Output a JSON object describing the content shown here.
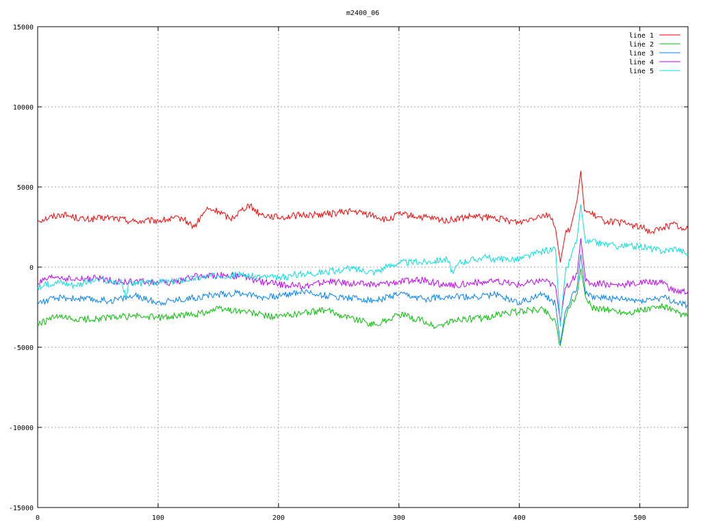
{
  "chart_data": {
    "type": "line",
    "title": "m2400_06",
    "xlabel": "",
    "ylabel": "",
    "xlim": [
      0,
      540
    ],
    "ylim": [
      -15000,
      15000
    ],
    "grid": true,
    "legend_position": "top-right",
    "x_ticks": [
      0,
      100,
      200,
      300,
      400,
      500
    ],
    "y_ticks": [
      -15000,
      -10000,
      -5000,
      0,
      5000,
      10000,
      15000
    ],
    "series": [
      {
        "name": "line 1",
        "color": "#ff0000",
        "points": [
          [
            0,
            2900
          ],
          [
            20,
            3300
          ],
          [
            40,
            2950
          ],
          [
            60,
            3100
          ],
          [
            80,
            2850
          ],
          [
            100,
            2900
          ],
          [
            120,
            3050
          ],
          [
            130,
            2500
          ],
          [
            140,
            3600
          ],
          [
            150,
            3500
          ],
          [
            160,
            3000
          ],
          [
            175,
            3900
          ],
          [
            185,
            3300
          ],
          [
            200,
            3100
          ],
          [
            220,
            3250
          ],
          [
            240,
            3300
          ],
          [
            260,
            3500
          ],
          [
            280,
            3200
          ],
          [
            290,
            2900
          ],
          [
            300,
            3300
          ],
          [
            320,
            3100
          ],
          [
            340,
            2900
          ],
          [
            360,
            3150
          ],
          [
            380,
            3050
          ],
          [
            400,
            2800
          ],
          [
            415,
            3200
          ],
          [
            425,
            3300
          ],
          [
            430,
            2400
          ],
          [
            434,
            300
          ],
          [
            438,
            2000
          ],
          [
            443,
            2600
          ],
          [
            448,
            4200
          ],
          [
            451,
            6000
          ],
          [
            454,
            3500
          ],
          [
            460,
            3300
          ],
          [
            470,
            2900
          ],
          [
            490,
            2700
          ],
          [
            500,
            2500
          ],
          [
            510,
            2200
          ],
          [
            520,
            2500
          ],
          [
            530,
            2700
          ],
          [
            535,
            2300
          ],
          [
            540,
            2400
          ]
        ]
      },
      {
        "name": "line 2",
        "color": "#00c000",
        "points": [
          [
            0,
            -3600
          ],
          [
            15,
            -3100
          ],
          [
            30,
            -3300
          ],
          [
            50,
            -3200
          ],
          [
            80,
            -3050
          ],
          [
            100,
            -3150
          ],
          [
            130,
            -2950
          ],
          [
            150,
            -2600
          ],
          [
            170,
            -2750
          ],
          [
            190,
            -3050
          ],
          [
            200,
            -3100
          ],
          [
            220,
            -2850
          ],
          [
            240,
            -2700
          ],
          [
            260,
            -3150
          ],
          [
            280,
            -3600
          ],
          [
            290,
            -3300
          ],
          [
            300,
            -2950
          ],
          [
            320,
            -3350
          ],
          [
            330,
            -3750
          ],
          [
            350,
            -3250
          ],
          [
            370,
            -3200
          ],
          [
            390,
            -2850
          ],
          [
            410,
            -2700
          ],
          [
            420,
            -2600
          ],
          [
            430,
            -3400
          ],
          [
            434,
            -4900
          ],
          [
            438,
            -3200
          ],
          [
            443,
            -2300
          ],
          [
            448,
            -1700
          ],
          [
            451,
            -100
          ],
          [
            455,
            -1900
          ],
          [
            460,
            -2500
          ],
          [
            490,
            -2850
          ],
          [
            520,
            -2450
          ],
          [
            530,
            -2850
          ],
          [
            540,
            -3100
          ]
        ]
      },
      {
        "name": "line 3",
        "color": "#0080ff",
        "points": [
          [
            0,
            -2200
          ],
          [
            20,
            -1900
          ],
          [
            40,
            -2000
          ],
          [
            60,
            -2100
          ],
          [
            80,
            -1800
          ],
          [
            100,
            -2200
          ],
          [
            130,
            -1900
          ],
          [
            150,
            -1700
          ],
          [
            170,
            -1600
          ],
          [
            190,
            -1900
          ],
          [
            200,
            -1800
          ],
          [
            220,
            -1500
          ],
          [
            240,
            -1800
          ],
          [
            260,
            -1900
          ],
          [
            280,
            -2100
          ],
          [
            300,
            -1700
          ],
          [
            320,
            -2000
          ],
          [
            340,
            -1800
          ],
          [
            360,
            -1900
          ],
          [
            380,
            -1700
          ],
          [
            400,
            -2200
          ],
          [
            420,
            -1700
          ],
          [
            430,
            -2300
          ],
          [
            434,
            -4800
          ],
          [
            438,
            -2800
          ],
          [
            443,
            -1900
          ],
          [
            448,
            -1200
          ],
          [
            451,
            800
          ],
          [
            455,
            -1700
          ],
          [
            460,
            -1800
          ],
          [
            480,
            -2000
          ],
          [
            500,
            -2100
          ],
          [
            520,
            -1900
          ],
          [
            530,
            -2200
          ],
          [
            540,
            -2400
          ]
        ]
      },
      {
        "name": "line 4",
        "color": "#c000ff",
        "points": [
          [
            0,
            -1000
          ],
          [
            15,
            -600
          ],
          [
            30,
            -800
          ],
          [
            50,
            -700
          ],
          [
            70,
            -950
          ],
          [
            90,
            -900
          ],
          [
            110,
            -1000
          ],
          [
            130,
            -600
          ],
          [
            150,
            -500
          ],
          [
            170,
            -600
          ],
          [
            180,
            -800
          ],
          [
            200,
            -1100
          ],
          [
            220,
            -1200
          ],
          [
            240,
            -900
          ],
          [
            260,
            -1000
          ],
          [
            280,
            -1100
          ],
          [
            300,
            -900
          ],
          [
            320,
            -800
          ],
          [
            340,
            -1200
          ],
          [
            360,
            -1000
          ],
          [
            380,
            -900
          ],
          [
            400,
            -1100
          ],
          [
            420,
            -800
          ],
          [
            430,
            -1200
          ],
          [
            434,
            -3400
          ],
          [
            438,
            -1300
          ],
          [
            443,
            -900
          ],
          [
            448,
            -400
          ],
          [
            451,
            1800
          ],
          [
            455,
            -900
          ],
          [
            460,
            -1000
          ],
          [
            480,
            -1100
          ],
          [
            500,
            -1000
          ],
          [
            520,
            -900
          ],
          [
            525,
            -1400
          ],
          [
            530,
            -1500
          ],
          [
            540,
            -1500
          ]
        ]
      },
      {
        "name": "line 5",
        "color": "#00e0e0",
        "points": [
          [
            0,
            -1300
          ],
          [
            15,
            -900
          ],
          [
            30,
            -1100
          ],
          [
            50,
            -800
          ],
          [
            70,
            -1000
          ],
          [
            73,
            -1900
          ],
          [
            76,
            -1000
          ],
          [
            90,
            -1000
          ],
          [
            110,
            -900
          ],
          [
            130,
            -700
          ],
          [
            150,
            -500
          ],
          [
            170,
            -500
          ],
          [
            200,
            -700
          ],
          [
            220,
            -400
          ],
          [
            240,
            -300
          ],
          [
            260,
            -100
          ],
          [
            280,
            -300
          ],
          [
            290,
            0
          ],
          [
            300,
            300
          ],
          [
            320,
            300
          ],
          [
            340,
            500
          ],
          [
            345,
            -400
          ],
          [
            350,
            300
          ],
          [
            370,
            600
          ],
          [
            380,
            500
          ],
          [
            400,
            500
          ],
          [
            420,
            1000
          ],
          [
            430,
            1100
          ],
          [
            434,
            -3700
          ],
          [
            438,
            -400
          ],
          [
            443,
            700
          ],
          [
            448,
            1800
          ],
          [
            451,
            3900
          ],
          [
            455,
            1500
          ],
          [
            460,
            1600
          ],
          [
            480,
            1300
          ],
          [
            500,
            1300
          ],
          [
            520,
            1000
          ],
          [
            530,
            1200
          ],
          [
            540,
            800
          ]
        ]
      }
    ]
  }
}
